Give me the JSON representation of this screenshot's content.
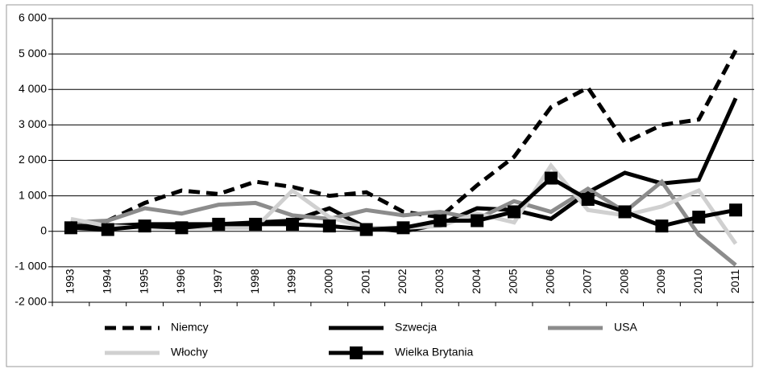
{
  "chart_data": {
    "type": "line",
    "categories": [
      "1993",
      "1994",
      "1995",
      "1996",
      "1997",
      "1998",
      "1999",
      "2000",
      "2001",
      "2002",
      "2003",
      "2004",
      "2005",
      "2006",
      "2007",
      "2008",
      "2009",
      "2010",
      "2011"
    ],
    "ylim": [
      -2000,
      6000
    ],
    "yticks": [
      {
        "value": -2000,
        "label": "-2 000"
      },
      {
        "value": -1000,
        "label": "-1 000"
      },
      0,
      {
        "value": 1000,
        "label": "1 000"
      },
      {
        "value": 2000,
        "label": "2 000"
      },
      {
        "value": 3000,
        "label": "3 000"
      },
      {
        "value": 4000,
        "label": "4 000"
      },
      {
        "value": 5000,
        "label": "5 000"
      },
      {
        "value": 6000,
        "label": "6 000"
      }
    ],
    "grid": true,
    "series": [
      {
        "name": "Niemcy",
        "color": "#000000",
        "dashed": true,
        "values": [
          200,
          300,
          800,
          1150,
          1050,
          1400,
          1250,
          1000,
          1100,
          550,
          400,
          1300,
          2100,
          3500,
          4050,
          2500,
          3000,
          3150,
          5100
        ]
      },
      {
        "name": "Szwecja",
        "color": "#000000",
        "values": [
          150,
          150,
          200,
          200,
          200,
          250,
          300,
          650,
          100,
          0,
          200,
          650,
          600,
          350,
          1100,
          1650,
          1350,
          1450,
          3750
        ]
      },
      {
        "name": "USA",
        "color": "#8c8c8c",
        "values": [
          250,
          300,
          650,
          500,
          750,
          800,
          450,
          350,
          600,
          450,
          550,
          350,
          850,
          550,
          1200,
          550,
          1400,
          -100,
          -950
        ]
      },
      {
        "name": "Włochy",
        "color": "#d0d0d0",
        "values": [
          350,
          150,
          100,
          100,
          100,
          100,
          1150,
          400,
          100,
          100,
          150,
          500,
          250,
          1850,
          600,
          450,
          700,
          1150,
          -350
        ]
      },
      {
        "name": "Wielka Brytania",
        "color": "#000000",
        "marker": "square",
        "values": [
          100,
          50,
          150,
          100,
          200,
          200,
          200,
          150,
          50,
          100,
          300,
          300,
          550,
          1500,
          900,
          550,
          150,
          400,
          600
        ]
      }
    ]
  }
}
